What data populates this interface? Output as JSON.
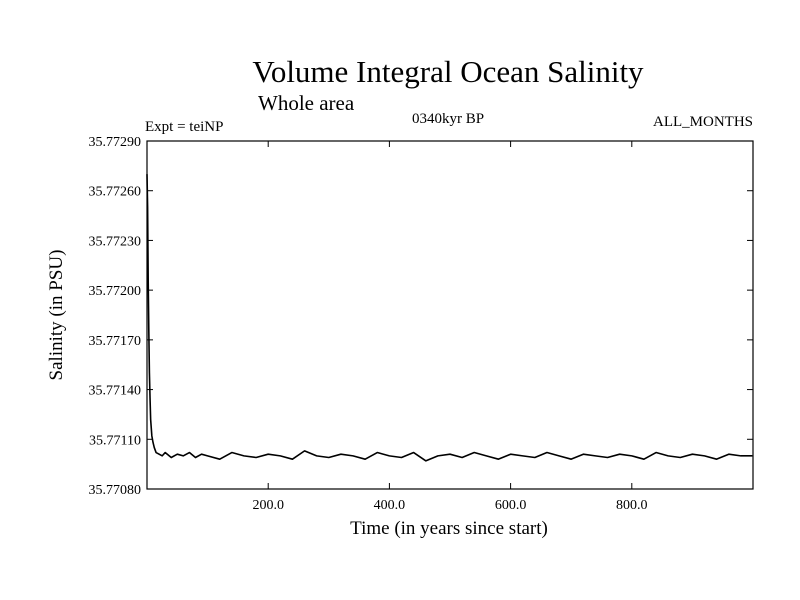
{
  "chart_data": {
    "type": "line",
    "title": "Volume Integral Ocean Salinity",
    "subtitle": "Whole area",
    "experiment": "Expt = teiNP",
    "period": "0340kyr BP",
    "months": "ALL_MONTHS",
    "xlabel": "Time (in years since start)",
    "ylabel": "Salinity (in PSU)",
    "xlim": [
      0,
      1000
    ],
    "ylim": [
      35.7708,
      35.7729
    ],
    "x_ticks": [
      200,
      400,
      600,
      800
    ],
    "x_tick_labels": [
      "200.0",
      "400.0",
      "600.0",
      "800.0"
    ],
    "y_ticks": [
      35.7708,
      35.7711,
      35.7714,
      35.7717,
      35.772,
      35.7723,
      35.7726,
      35.7729
    ],
    "y_tick_labels": [
      "35.77080",
      "35.77110",
      "35.77140",
      "35.77170",
      "35.77200",
      "35.77230",
      "35.77260",
      "35.77290"
    ],
    "grid": false,
    "series": [
      {
        "x": [
          0,
          1,
          2,
          3,
          4,
          5,
          6,
          8,
          10,
          12,
          15,
          20,
          25,
          30,
          40,
          50,
          60,
          70,
          80,
          90,
          100,
          120,
          140,
          160,
          180,
          200,
          220,
          240,
          260,
          280,
          300,
          320,
          340,
          360,
          380,
          400,
          420,
          440,
          460,
          480,
          500,
          520,
          540,
          560,
          580,
          600,
          620,
          640,
          660,
          680,
          700,
          720,
          740,
          760,
          780,
          800,
          820,
          840,
          860,
          880,
          900,
          920,
          940,
          960,
          980,
          999
        ],
        "y": [
          35.7727,
          35.7725,
          35.77205,
          35.77175,
          35.7715,
          35.77135,
          35.77122,
          35.77112,
          35.77108,
          35.77105,
          35.77102,
          35.77101,
          35.771,
          35.77102,
          35.77099,
          35.77101,
          35.771,
          35.77102,
          35.77099,
          35.77101,
          35.771,
          35.77098,
          35.77102,
          35.771,
          35.77099,
          35.77101,
          35.771,
          35.77098,
          35.77103,
          35.771,
          35.77099,
          35.77101,
          35.771,
          35.77098,
          35.77102,
          35.771,
          35.77099,
          35.77102,
          35.77097,
          35.771,
          35.77101,
          35.77099,
          35.77102,
          35.771,
          35.77098,
          35.77101,
          35.771,
          35.77099,
          35.77102,
          35.771,
          35.77098,
          35.77101,
          35.771,
          35.77099,
          35.77101,
          35.771,
          35.77098,
          35.77102,
          35.771,
          35.77099,
          35.77101,
          35.771,
          35.77098,
          35.77101,
          35.771,
          35.771
        ],
        "color": "#000000"
      }
    ]
  }
}
